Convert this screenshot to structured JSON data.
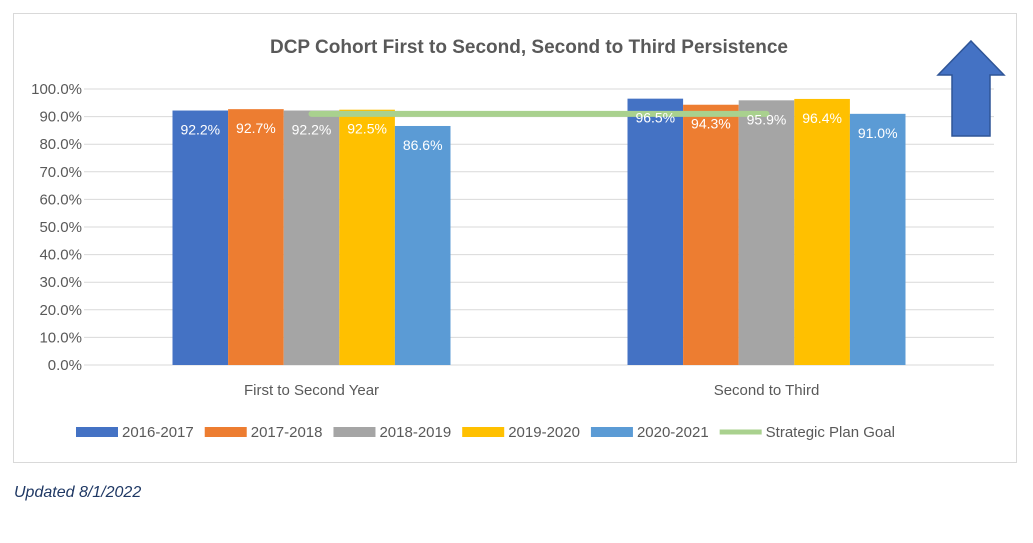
{
  "chart_data": {
    "type": "bar",
    "title": "DCP Cohort First to Second, Second to Third Persistence",
    "categories": [
      "First to Second Year",
      "Second to Third"
    ],
    "series": [
      {
        "name": "2016-2017",
        "values": [
          92.2,
          96.5
        ],
        "labels": [
          "92.2%",
          "96.5%"
        ],
        "color": "#4472c4"
      },
      {
        "name": "2017-2018",
        "values": [
          92.7,
          94.3
        ],
        "labels": [
          "92.7%",
          "94.3%"
        ],
        "color": "#ed7d31"
      },
      {
        "name": "2018-2019",
        "values": [
          92.2,
          95.9
        ],
        "labels": [
          "92.2%",
          "95.9%"
        ],
        "color": "#a5a5a5"
      },
      {
        "name": "2019-2020",
        "values": [
          92.5,
          96.4
        ],
        "labels": [
          "92.5%",
          "96.4%"
        ],
        "color": "#ffc000"
      },
      {
        "name": "2020-2021",
        "values": [
          86.6,
          91.0
        ],
        "labels": [
          "86.6%",
          "91.0%"
        ],
        "color": "#5b9bd5"
      }
    ],
    "goal_line": {
      "name": "Strategic Plan Goal",
      "value": 91.0,
      "color": "#a9d18e"
    },
    "yticks": [
      "0.0%",
      "10.0%",
      "20.0%",
      "30.0%",
      "40.0%",
      "50.0%",
      "60.0%",
      "70.0%",
      "80.0%",
      "90.0%",
      "100.0%"
    ],
    "ylim": [
      0,
      100
    ],
    "grid": true,
    "legend": "bottom",
    "up_arrow_color": "#4472c4"
  },
  "footnote": "Updated 8/1/2022"
}
